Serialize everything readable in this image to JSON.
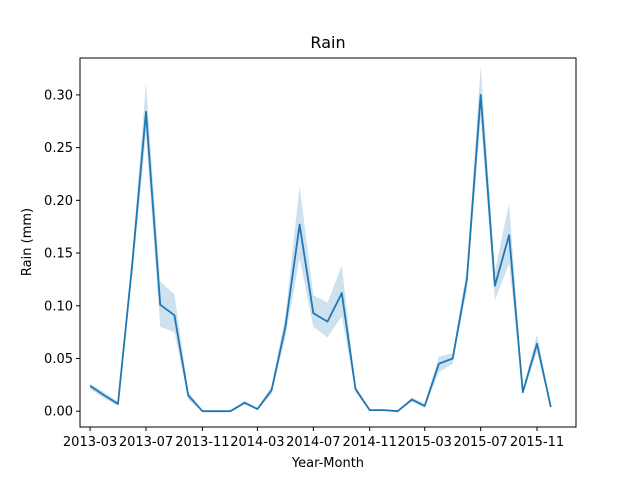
{
  "chart_data": {
    "type": "line",
    "title": "Rain",
    "xlabel": "Year-Month",
    "ylabel": "Rain (mm)",
    "grid": false,
    "legend": "none",
    "ylim": [
      -0.015,
      0.335
    ],
    "xlim": [
      "2013-02-07",
      "2016-01-25"
    ],
    "x_ticks": [
      "2013-03",
      "2013-07",
      "2013-11",
      "2014-03",
      "2014-07",
      "2014-11",
      "2015-03",
      "2015-07",
      "2015-11"
    ],
    "y_ticks": [
      "0.00",
      "0.05",
      "0.10",
      "0.15",
      "0.20",
      "0.25",
      "0.30"
    ],
    "color": "#1f77b4",
    "series": [
      {
        "x": [
          "2013-03",
          "2013-04",
          "2013-05",
          "2013-06",
          "2013-07",
          "2013-08",
          "2013-09",
          "2013-10",
          "2013-11",
          "2013-12",
          "2014-01",
          "2014-02",
          "2014-03",
          "2014-04",
          "2014-05",
          "2014-06",
          "2014-07",
          "2014-08",
          "2014-09",
          "2014-10",
          "2014-11",
          "2014-12",
          "2015-01",
          "2015-02",
          "2015-03",
          "2015-04",
          "2015-05",
          "2015-06",
          "2015-07",
          "2015-08",
          "2015-09",
          "2015-10",
          "2015-11",
          "2015-12"
        ],
        "y": [
          0.024,
          0.015,
          0.007,
          0.14,
          0.284,
          0.101,
          0.091,
          0.015,
          0.0,
          0.0,
          0.0,
          0.008,
          0.002,
          0.02,
          0.08,
          0.177,
          0.093,
          0.085,
          0.112,
          0.021,
          0.001,
          0.001,
          0.0,
          0.011,
          0.005,
          0.045,
          0.05,
          0.125,
          0.3,
          0.119,
          0.167,
          0.018,
          0.064,
          0.004
        ],
        "lower": [
          0.021,
          0.012,
          0.005,
          0.13,
          0.262,
          0.08,
          0.075,
          0.011,
          0.0,
          0.0,
          0.0,
          0.007,
          0.001,
          0.016,
          0.07,
          0.145,
          0.08,
          0.07,
          0.09,
          0.018,
          0.0,
          0.0,
          0.0,
          0.009,
          0.003,
          0.037,
          0.045,
          0.115,
          0.278,
          0.105,
          0.14,
          0.016,
          0.056,
          0.003
        ],
        "upper": [
          0.026,
          0.018,
          0.009,
          0.15,
          0.311,
          0.123,
          0.111,
          0.019,
          0.001,
          0.001,
          0.0,
          0.01,
          0.003,
          0.024,
          0.09,
          0.214,
          0.11,
          0.103,
          0.138,
          0.024,
          0.002,
          0.002,
          0.001,
          0.013,
          0.007,
          0.052,
          0.055,
          0.135,
          0.328,
          0.133,
          0.197,
          0.02,
          0.073,
          0.005
        ]
      }
    ]
  }
}
